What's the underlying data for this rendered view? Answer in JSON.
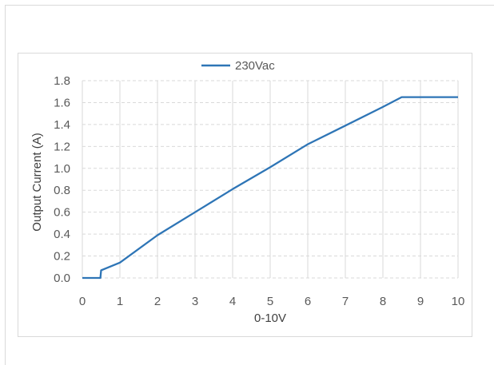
{
  "chart_data": {
    "type": "line",
    "title": "",
    "xlabel": "0-10V",
    "ylabel": "Output Current (A)",
    "xlim": [
      0,
      10
    ],
    "ylim": [
      0,
      1.8
    ],
    "x_ticks": [
      "0",
      "1",
      "2",
      "3",
      "4",
      "5",
      "6",
      "7",
      "8",
      "9",
      "10"
    ],
    "y_ticks": [
      "0.0",
      "0.2",
      "0.4",
      "0.6",
      "0.8",
      "1.0",
      "1.2",
      "1.4",
      "1.6",
      "1.8"
    ],
    "grid": true,
    "legend_position": "top",
    "series": [
      {
        "name": "230Vac",
        "color": "#2e75b6",
        "x": [
          0,
          0.48,
          0.5,
          1,
          2,
          3,
          4,
          5,
          6,
          7,
          8,
          8.5,
          9,
          10
        ],
        "y": [
          0,
          0,
          0.07,
          0.14,
          0.39,
          0.6,
          0.81,
          1.01,
          1.22,
          1.39,
          1.56,
          1.65,
          1.65,
          1.65
        ]
      }
    ]
  }
}
